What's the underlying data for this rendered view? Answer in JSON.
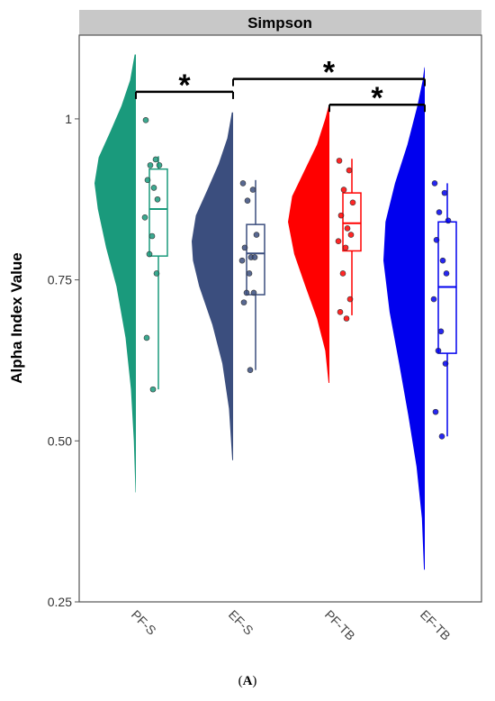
{
  "caption": {
    "open": "(",
    "letter": "A",
    "close": ")"
  },
  "chart_data": {
    "type": "raincloud",
    "facet_title": "Simpson",
    "ylabel": "Alpha Index Value",
    "xlabel": "",
    "ylim": [
      0.25,
      1.13
    ],
    "yticks": [
      0.25,
      0.5,
      0.75,
      1
    ],
    "ytick_labels": [
      "0.25",
      "0.50",
      "0.75",
      "1"
    ],
    "categories": [
      "PF-S",
      "EF-S",
      "PF-TB",
      "EF-TB"
    ],
    "colors": [
      "#1a9a7c",
      "#3b4e7e",
      "#ff0000",
      "#0000ee"
    ],
    "groups": [
      {
        "name": "PF-S",
        "points": [
          0.998,
          0.937,
          0.928,
          0.928,
          0.905,
          0.893,
          0.875,
          0.847,
          0.818,
          0.79,
          0.76,
          0.66,
          0.58
        ],
        "box": {
          "min": 0.58,
          "q1": 0.787,
          "median": 0.86,
          "q3": 0.922,
          "max": 0.942
        },
        "density": [
          [
            0.42,
            0.01
          ],
          [
            0.5,
            0.05
          ],
          [
            0.58,
            0.12
          ],
          [
            0.66,
            0.25
          ],
          [
            0.74,
            0.47
          ],
          [
            0.8,
            0.72
          ],
          [
            0.86,
            0.92
          ],
          [
            0.9,
            1.0
          ],
          [
            0.94,
            0.9
          ],
          [
            0.98,
            0.62
          ],
          [
            1.02,
            0.35
          ],
          [
            1.06,
            0.14
          ],
          [
            1.1,
            0.03
          ]
        ]
      },
      {
        "name": "EF-S",
        "points": [
          0.9,
          0.89,
          0.873,
          0.82,
          0.8,
          0.785,
          0.785,
          0.78,
          0.76,
          0.73,
          0.73,
          0.715,
          0.61
        ],
        "box": {
          "min": 0.61,
          "q1": 0.727,
          "median": 0.791,
          "q3": 0.836,
          "max": 0.905
        },
        "density": [
          [
            0.47,
            0.02
          ],
          [
            0.55,
            0.1
          ],
          [
            0.62,
            0.26
          ],
          [
            0.68,
            0.5
          ],
          [
            0.74,
            0.82
          ],
          [
            0.78,
            0.97
          ],
          [
            0.81,
            1.0
          ],
          [
            0.85,
            0.9
          ],
          [
            0.89,
            0.62
          ],
          [
            0.93,
            0.35
          ],
          [
            0.97,
            0.14
          ],
          [
            1.01,
            0.03
          ]
        ]
      },
      {
        "name": "PF-TB",
        "points": [
          0.935,
          0.92,
          0.89,
          0.87,
          0.85,
          0.83,
          0.82,
          0.81,
          0.8,
          0.76,
          0.72,
          0.7,
          0.69
        ],
        "box": {
          "min": 0.695,
          "q1": 0.795,
          "median": 0.838,
          "q3": 0.885,
          "max": 0.938
        },
        "density": [
          [
            0.59,
            0.02
          ],
          [
            0.64,
            0.1
          ],
          [
            0.69,
            0.3
          ],
          [
            0.74,
            0.58
          ],
          [
            0.79,
            0.85
          ],
          [
            0.84,
            1.0
          ],
          [
            0.88,
            0.9
          ],
          [
            0.92,
            0.6
          ],
          [
            0.96,
            0.3
          ],
          [
            1.0,
            0.1
          ],
          [
            1.02,
            0.02
          ]
        ]
      },
      {
        "name": "EF-TB",
        "points": [
          0.9,
          0.885,
          0.855,
          0.842,
          0.812,
          0.78,
          0.76,
          0.72,
          0.67,
          0.64,
          0.62,
          0.545,
          0.507
        ],
        "box": {
          "min": 0.507,
          "q1": 0.636,
          "median": 0.739,
          "q3": 0.84,
          "max": 0.9
        },
        "density": [
          [
            0.3,
            0.02
          ],
          [
            0.38,
            0.07
          ],
          [
            0.46,
            0.2
          ],
          [
            0.54,
            0.4
          ],
          [
            0.62,
            0.62
          ],
          [
            0.7,
            0.85
          ],
          [
            0.78,
            1.0
          ],
          [
            0.84,
            0.95
          ],
          [
            0.9,
            0.72
          ],
          [
            0.96,
            0.42
          ],
          [
            1.02,
            0.18
          ],
          [
            1.06,
            0.05
          ],
          [
            1.08,
            0.01
          ]
        ]
      }
    ],
    "significance": [
      {
        "from": "PF-S",
        "to": "EF-S",
        "label": "*",
        "y": 1.042
      },
      {
        "from": "EF-S",
        "to": "EF-TB",
        "label": "*",
        "y": 1.062
      },
      {
        "from": "PF-TB",
        "to": "EF-TB",
        "label": "*",
        "y": 1.022
      }
    ]
  }
}
